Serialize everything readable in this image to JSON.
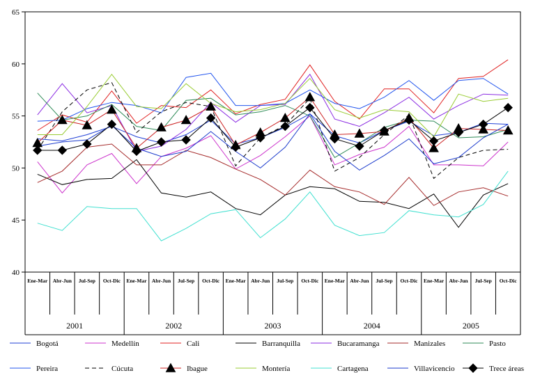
{
  "chart_data": {
    "type": "line",
    "title": "",
    "xlabel": "",
    "ylabel": "",
    "ylim": [
      40,
      65
    ],
    "yticks": [
      40,
      45,
      50,
      55,
      60,
      65
    ],
    "grid": false,
    "legend_position": "bottom",
    "years": [
      "2001",
      "2002",
      "2003",
      "2004",
      "2005"
    ],
    "quarters": [
      "Ene-Mar",
      "Abr-Jun",
      "Jul-Sep",
      "Oct-Dic"
    ],
    "categories": [
      "2001 Ene-Mar",
      "2001 Abr-Jun",
      "2001 Jul-Sep",
      "2001 Oct-Dic",
      "2002 Ene-Mar",
      "2002 Abr-Jun",
      "2002 Jul-Sep",
      "2002 Oct-Dic",
      "2003 Ene-Mar",
      "2003 Abr-Jun",
      "2003 Jul-Sep",
      "2003 Oct-Dic",
      "2004 Ene-Mar",
      "2004 Abr-Jun",
      "2004 Jul-Sep",
      "2004 Oct-Dic",
      "2005 Ene-Mar",
      "2005 Abr-Jun",
      "2005 Jul-Sep",
      "2005 Oct-Dic"
    ],
    "series": [
      {
        "name": "Bogotá",
        "color": "#1f3fd6",
        "dash": "",
        "marker": "none",
        "values": [
          52.8,
          52.6,
          53.2,
          54.0,
          53.0,
          52.4,
          53.2,
          54.6,
          52.3,
          52.9,
          53.9,
          55.2,
          53.1,
          52.4,
          53.6,
          54.5,
          53.1,
          53.4,
          54.3,
          54.2
        ]
      },
      {
        "name": "Medellín",
        "color": "#cc33cc",
        "dash": "",
        "marker": "none",
        "values": [
          50.6,
          47.6,
          50.3,
          51.4,
          48.5,
          51.1,
          51.9,
          53.1,
          49.9,
          51.2,
          53.0,
          55.0,
          50.3,
          51.3,
          52.0,
          54.0,
          50.3,
          50.3,
          50.2,
          52.5
        ]
      },
      {
        "name": "Cali",
        "color": "#e02020",
        "dash": "",
        "marker": "none",
        "values": [
          53.6,
          55.1,
          54.4,
          57.4,
          54.3,
          56.0,
          55.8,
          57.5,
          55.2,
          56.1,
          56.6,
          59.9,
          56.4,
          54.7,
          57.6,
          57.6,
          55.3,
          58.6,
          58.8,
          60.4
        ]
      },
      {
        "name": "Barranquilla",
        "color": "#000000",
        "dash": "",
        "marker": "none",
        "values": [
          49.4,
          48.4,
          48.9,
          49.0,
          50.8,
          47.6,
          47.2,
          47.7,
          46.1,
          45.5,
          47.4,
          48.2,
          48.0,
          46.8,
          46.7,
          46.1,
          47.5,
          44.3,
          47.4,
          48.5
        ]
      },
      {
        "name": "Bucaramanga",
        "color": "#8a2be2",
        "dash": "",
        "marker": "none",
        "values": [
          55.1,
          58.1,
          55.3,
          56.0,
          51.6,
          52.1,
          53.7,
          56.3,
          54.4,
          56.0,
          56.1,
          59.0,
          54.7,
          54.0,
          55.3,
          56.8,
          54.7,
          56.0,
          57.1,
          57.0
        ]
      },
      {
        "name": "Manizales",
        "color": "#a52a2a",
        "dash": "",
        "marker": "none",
        "values": [
          48.6,
          49.7,
          52.0,
          52.3,
          50.3,
          50.3,
          51.7,
          51.0,
          49.9,
          48.9,
          47.4,
          49.8,
          48.2,
          47.7,
          46.5,
          49.1,
          46.4,
          47.7,
          48.1,
          47.3
        ]
      },
      {
        "name": "Pasto",
        "color": "#2e8b57",
        "dash": "",
        "marker": "none",
        "values": [
          57.2,
          54.6,
          55.0,
          56.1,
          54.0,
          53.6,
          56.5,
          56.7,
          55.1,
          55.4,
          56.0,
          55.0,
          51.0,
          52.4,
          53.9,
          54.6,
          54.5,
          52.9,
          53.0,
          53.7
        ]
      },
      {
        "name": "Pereira",
        "color": "#2255ee",
        "dash": "",
        "marker": "none",
        "values": [
          54.5,
          54.6,
          55.7,
          56.3,
          56.0,
          55.3,
          58.7,
          59.1,
          56.0,
          56.0,
          56.2,
          57.5,
          56.2,
          55.7,
          56.8,
          58.4,
          56.5,
          58.4,
          58.6,
          57.1
        ]
      },
      {
        "name": "Cúcuta",
        "color": "#000000",
        "dash": "6,4",
        "marker": "none",
        "values": [
          51.7,
          55.4,
          57.5,
          58.2,
          53.4,
          55.4,
          56.3,
          55.9,
          50.2,
          52.9,
          54.1,
          56.7,
          49.7,
          51.0,
          53.2,
          55.1,
          49.0,
          51.0,
          51.7,
          51.8
        ]
      },
      {
        "name": "Ibague",
        "color": "#cc2222",
        "dash": "",
        "marker": "triangle",
        "values": [
          52.4,
          54.6,
          54.1,
          55.6,
          51.9,
          53.9,
          54.6,
          55.9,
          52.2,
          53.4,
          54.8,
          56.8,
          53.2,
          53.3,
          53.5,
          54.8,
          51.9,
          53.8,
          53.7,
          53.6
        ]
      },
      {
        "name": "Montería",
        "color": "#99cc33",
        "dash": "",
        "marker": "none",
        "values": [
          53.2,
          53.2,
          55.9,
          59.0,
          55.9,
          55.7,
          58.1,
          56.2,
          55.4,
          55.6,
          56.2,
          58.6,
          55.6,
          54.8,
          55.6,
          55.4,
          53.0,
          57.1,
          56.4,
          56.7
        ]
      },
      {
        "name": "Cartagena",
        "color": "#40e0d0",
        "dash": "",
        "marker": "none",
        "values": [
          44.7,
          44.0,
          46.3,
          46.1,
          46.1,
          43.0,
          44.2,
          45.6,
          46.0,
          43.3,
          45.1,
          47.7,
          44.5,
          43.5,
          43.8,
          45.9,
          45.5,
          45.3,
          46.5,
          49.7
        ]
      },
      {
        "name": "Villavicencio",
        "color": "#1a3acc",
        "dash": "",
        "marker": "none",
        "values": [
          52.1,
          52.5,
          52.7,
          54.1,
          51.9,
          51.1,
          51.6,
          53.5,
          51.6,
          50.0,
          52.0,
          55.2,
          51.6,
          49.8,
          51.2,
          52.8,
          50.4,
          51.0,
          52.9,
          54.2
        ]
      },
      {
        "name": "Trece áreas",
        "color": "#000000",
        "dash": "",
        "marker": "diamond",
        "values": [
          51.7,
          51.7,
          52.3,
          54.2,
          51.6,
          52.5,
          52.7,
          54.8,
          52.0,
          52.9,
          54.0,
          55.8,
          52.8,
          52.1,
          53.6,
          54.6,
          52.6,
          53.4,
          54.2,
          55.8
        ]
      }
    ]
  }
}
